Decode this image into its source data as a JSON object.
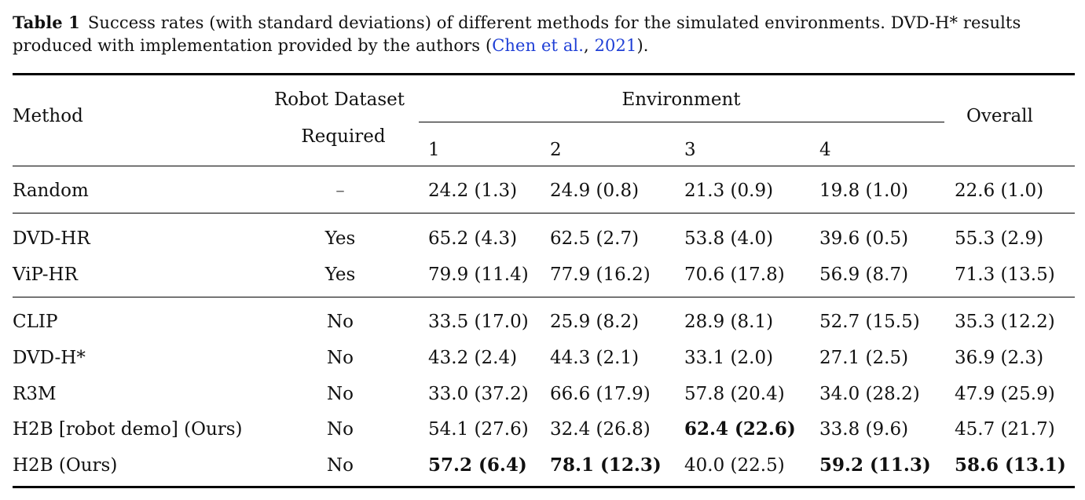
{
  "caption": {
    "label": "Table 1",
    "text_before": "Success rates (with standard deviations) of different methods for the simulated environments. DVD-H* results produced with implementation provided by the authors (",
    "cite_authors": "Chen et al.",
    "cite_sep": ", ",
    "cite_year": "2021",
    "text_after": ")."
  },
  "header": {
    "method": "Method",
    "robot_dataset_line1": "Robot Dataset",
    "robot_dataset_line2": "Required",
    "environment": "Environment",
    "env_cols": [
      "1",
      "2",
      "3",
      "4"
    ],
    "overall": "Overall"
  },
  "rows": [
    {
      "method": "Random",
      "required": "–",
      "values": [
        "24.2 (1.3)",
        "24.9 (0.8)",
        "21.3 (0.9)",
        "19.8 (1.0)",
        "22.6 (1.0)"
      ],
      "bold": [
        false,
        false,
        false,
        false,
        false
      ]
    },
    {
      "method": "DVD-HR",
      "required": "Yes",
      "values": [
        "65.2 (4.3)",
        "62.5 (2.7)",
        "53.8 (4.0)",
        "39.6 (0.5)",
        "55.3 (2.9)"
      ],
      "bold": [
        false,
        false,
        false,
        false,
        false
      ]
    },
    {
      "method": "ViP-HR",
      "required": "Yes",
      "values": [
        "79.9 (11.4)",
        "77.9 (16.2)",
        "70.6 (17.8)",
        "56.9 (8.7)",
        "71.3 (13.5)"
      ],
      "bold": [
        false,
        false,
        false,
        false,
        false
      ]
    },
    {
      "method": "CLIP",
      "required": "No",
      "values": [
        "33.5 (17.0)",
        "25.9 (8.2)",
        "28.9 (8.1)",
        "52.7 (15.5)",
        "35.3 (12.2)"
      ],
      "bold": [
        false,
        false,
        false,
        false,
        false
      ]
    },
    {
      "method": "DVD-H*",
      "required": "No",
      "values": [
        "43.2 (2.4)",
        "44.3 (2.1)",
        "33.1 (2.0)",
        "27.1 (2.5)",
        "36.9 (2.3)"
      ],
      "bold": [
        false,
        false,
        false,
        false,
        false
      ]
    },
    {
      "method": "R3M",
      "required": "No",
      "values": [
        "33.0 (37.2)",
        "66.6 (17.9)",
        "57.8 (20.4)",
        "34.0 (28.2)",
        "47.9 (25.9)"
      ],
      "bold": [
        false,
        false,
        false,
        false,
        false
      ]
    },
    {
      "method": "H2B [robot demo] (Ours)",
      "required": "No",
      "values": [
        "54.1 (27.6)",
        "32.4 (26.8)",
        "62.4 (22.6)",
        "33.8 (9.6)",
        "45.7 (21.7)"
      ],
      "bold": [
        false,
        false,
        true,
        false,
        false
      ]
    },
    {
      "method": "H2B (Ours)",
      "required": "No",
      "values": [
        "57.2 (6.4)",
        "78.1 (12.3)",
        "40.0 (22.5)",
        "59.2 (11.3)",
        "58.6 (13.1)"
      ],
      "bold": [
        true,
        true,
        false,
        true,
        true
      ]
    }
  ]
}
